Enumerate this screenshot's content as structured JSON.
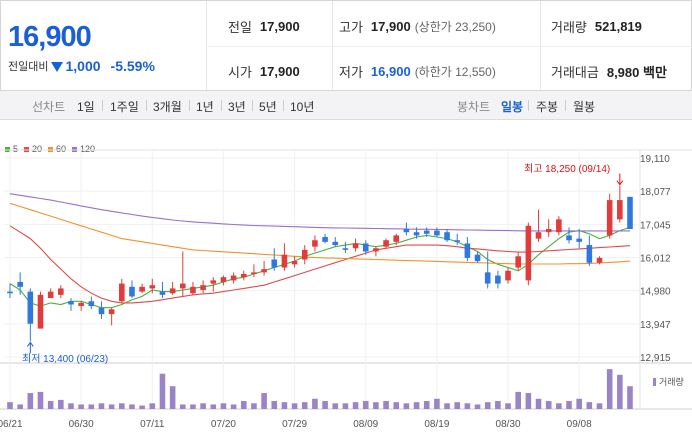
{
  "quote": {
    "price": "16,900",
    "change_label": "전일대비",
    "change_amount": "1,000",
    "change_rate": "-5.59%",
    "prev_close_label": "전일",
    "prev_close": "17,900",
    "high_label": "고가",
    "high": "17,900",
    "upper_limit": "(상한가 23,250)",
    "volume_label": "거래량",
    "volume": "521,819",
    "open_label": "시가",
    "open": "17,900",
    "low_label": "저가",
    "low": "16,900",
    "lower_limit": "(하한가 12,550)",
    "amount_label": "거래대금",
    "amount": "8,980 백만"
  },
  "toolbar": {
    "line_chart_label": "선차트",
    "line_periods": [
      "1일",
      "1주일",
      "3개월",
      "1년",
      "3년",
      "5년",
      "10년"
    ],
    "candle_chart_label": "봉차트",
    "candle_periods": [
      "일봉",
      "주봉",
      "월봉"
    ],
    "active_candle_period": "일봉"
  },
  "legend": [
    {
      "label": "5",
      "color": "#4caf3c"
    },
    {
      "label": "20",
      "color": "#e04b4b"
    },
    {
      "label": "60",
      "color": "#f0922e"
    },
    {
      "label": "120",
      "color": "#9b6ed0"
    }
  ],
  "annotations": {
    "high": "최고 18,250 (09/14)",
    "low": "최저 13,400 (06/23)"
  },
  "volume_label": "거래량",
  "chart_data": {
    "type": "candlestick",
    "y_ticks": [
      "19,110",
      "18,077",
      "17,045",
      "16,012",
      "14,980",
      "13,947",
      "12,915"
    ],
    "y_tick_values": [
      19110,
      18077,
      17045,
      16012,
      14980,
      13947,
      12915
    ],
    "ylim": [
      12915,
      19110
    ],
    "x_ticks": [
      "06/21",
      "06/30",
      "07/11",
      "07/20",
      "07/29",
      "08/09",
      "08/19",
      "08/30",
      "09/08"
    ],
    "x_tick_index": [
      0,
      7,
      14,
      21,
      28,
      35,
      42,
      49,
      56
    ],
    "colors": {
      "up": "#e03c3c",
      "down": "#2f78e0",
      "volume": "#9b83c7"
    },
    "candles": [
      {
        "o": 14950,
        "h": 15200,
        "l": 14750,
        "c": 14900
      },
      {
        "o": 15250,
        "h": 15550,
        "l": 14850,
        "c": 15100
      },
      {
        "o": 14950,
        "h": 15050,
        "l": 13400,
        "c": 13950
      },
      {
        "o": 13800,
        "h": 14950,
        "l": 13800,
        "c": 14850
      },
      {
        "o": 14750,
        "h": 15050,
        "l": 14750,
        "c": 14950
      },
      {
        "o": 14850,
        "h": 15150,
        "l": 14750,
        "c": 15050
      },
      {
        "o": 14650,
        "h": 14750,
        "l": 14350,
        "c": 14550
      },
      {
        "o": 14500,
        "h": 14650,
        "l": 14350,
        "c": 14600
      },
      {
        "o": 14650,
        "h": 14800,
        "l": 14400,
        "c": 14500
      },
      {
        "o": 14450,
        "h": 14650,
        "l": 14100,
        "c": 14250
      },
      {
        "o": 14250,
        "h": 14450,
        "l": 13900,
        "c": 14400
      },
      {
        "o": 14650,
        "h": 15350,
        "l": 14600,
        "c": 15200
      },
      {
        "o": 15100,
        "h": 15300,
        "l": 14750,
        "c": 14800
      },
      {
        "o": 14950,
        "h": 15200,
        "l": 14900,
        "c": 15100
      },
      {
        "o": 15050,
        "h": 15350,
        "l": 14900,
        "c": 15150
      },
      {
        "o": 14950,
        "h": 15250,
        "l": 14750,
        "c": 14850
      },
      {
        "o": 14900,
        "h": 15250,
        "l": 14850,
        "c": 15050
      },
      {
        "o": 15050,
        "h": 16200,
        "l": 14800,
        "c": 15200
      },
      {
        "o": 14900,
        "h": 15250,
        "l": 14850,
        "c": 15100
      },
      {
        "o": 15000,
        "h": 15300,
        "l": 14900,
        "c": 15150
      },
      {
        "o": 15200,
        "h": 15400,
        "l": 14950,
        "c": 15300
      },
      {
        "o": 15250,
        "h": 15450,
        "l": 15150,
        "c": 15400
      },
      {
        "o": 15300,
        "h": 15550,
        "l": 15200,
        "c": 15450
      },
      {
        "o": 15400,
        "h": 15600,
        "l": 15300,
        "c": 15500
      },
      {
        "o": 15500,
        "h": 15800,
        "l": 15400,
        "c": 15550
      },
      {
        "o": 15550,
        "h": 15900,
        "l": 15450,
        "c": 15650
      },
      {
        "o": 15950,
        "h": 16300,
        "l": 15600,
        "c": 15700
      },
      {
        "o": 15700,
        "h": 16450,
        "l": 15600,
        "c": 16100
      },
      {
        "o": 15800,
        "h": 16050,
        "l": 15700,
        "c": 15900
      },
      {
        "o": 15950,
        "h": 16400,
        "l": 15800,
        "c": 16250
      },
      {
        "o": 16350,
        "h": 16700,
        "l": 16200,
        "c": 16550
      },
      {
        "o": 16650,
        "h": 16750,
        "l": 16450,
        "c": 16500
      },
      {
        "o": 16500,
        "h": 16650,
        "l": 16350,
        "c": 16400
      },
      {
        "o": 16300,
        "h": 16500,
        "l": 16150,
        "c": 16250
      },
      {
        "o": 16300,
        "h": 16600,
        "l": 16200,
        "c": 16450
      },
      {
        "o": 16450,
        "h": 16550,
        "l": 16100,
        "c": 16200
      },
      {
        "o": 16200,
        "h": 16350,
        "l": 16050,
        "c": 16300
      },
      {
        "o": 16350,
        "h": 16600,
        "l": 16300,
        "c": 16550
      },
      {
        "o": 16500,
        "h": 16750,
        "l": 16400,
        "c": 16700
      },
      {
        "o": 16900,
        "h": 17100,
        "l": 16700,
        "c": 16800
      },
      {
        "o": 16800,
        "h": 16950,
        "l": 16600,
        "c": 16700
      },
      {
        "o": 16850,
        "h": 16950,
        "l": 16650,
        "c": 16750
      },
      {
        "o": 16850,
        "h": 16950,
        "l": 16650,
        "c": 16700
      },
      {
        "o": 16800,
        "h": 16900,
        "l": 16500,
        "c": 16550
      },
      {
        "o": 16550,
        "h": 16750,
        "l": 16400,
        "c": 16500
      },
      {
        "o": 16450,
        "h": 16650,
        "l": 15900,
        "c": 16000
      },
      {
        "o": 16100,
        "h": 16200,
        "l": 15850,
        "c": 15900
      },
      {
        "o": 15550,
        "h": 16200,
        "l": 15050,
        "c": 15200
      },
      {
        "o": 15450,
        "h": 15600,
        "l": 15050,
        "c": 15200
      },
      {
        "o": 15300,
        "h": 15700,
        "l": 15200,
        "c": 15600
      },
      {
        "o": 15700,
        "h": 16200,
        "l": 15600,
        "c": 16050
      },
      {
        "o": 15300,
        "h": 17100,
        "l": 15150,
        "c": 17000
      },
      {
        "o": 16600,
        "h": 17500,
        "l": 16500,
        "c": 16800
      },
      {
        "o": 16800,
        "h": 17200,
        "l": 16650,
        "c": 16900
      },
      {
        "o": 16800,
        "h": 17300,
        "l": 16700,
        "c": 17200
      },
      {
        "o": 16700,
        "h": 16950,
        "l": 16450,
        "c": 16550
      },
      {
        "o": 16600,
        "h": 16900,
        "l": 16300,
        "c": 16500
      },
      {
        "o": 16400,
        "h": 16700,
        "l": 15750,
        "c": 15850
      },
      {
        "o": 15850,
        "h": 16050,
        "l": 15800,
        "c": 16000
      },
      {
        "o": 16700,
        "h": 18000,
        "l": 16600,
        "c": 17800
      },
      {
        "o": 17200,
        "h": 18250,
        "l": 17100,
        "c": 17800
      },
      {
        "o": 17900,
        "h": 17900,
        "l": 16900,
        "c": 16900
      }
    ],
    "volumes": [
      12,
      8,
      28,
      30,
      14,
      16,
      10,
      8,
      8,
      10,
      8,
      10,
      8,
      6,
      10,
      62,
      40,
      8,
      8,
      10,
      8,
      10,
      8,
      14,
      10,
      28,
      14,
      12,
      10,
      12,
      18,
      14,
      10,
      10,
      12,
      14,
      12,
      14,
      12,
      10,
      12,
      14,
      18,
      10,
      12,
      10,
      8,
      12,
      14,
      10,
      30,
      28,
      18,
      14,
      10,
      14,
      18,
      12,
      10,
      70,
      60,
      40
    ],
    "vol_ylim": [
      0,
      72
    ],
    "ma": [
      {
        "name": "5",
        "color": "#4caf3c",
        "values": [
          15200,
          15000,
          14600,
          14500,
          14600,
          14550,
          14650,
          14650,
          14550,
          14450,
          14450,
          14550,
          14700,
          14800,
          15000,
          14950,
          14950,
          15000,
          15050,
          15100,
          15150,
          15250,
          15350,
          15400,
          15500,
          15600,
          15700,
          15800,
          15900,
          16050,
          16150,
          16250,
          16350,
          16400,
          16450,
          16400,
          16350,
          16400,
          16450,
          16550,
          16650,
          16700,
          16650,
          16600,
          16500,
          16350,
          16200,
          15950,
          15800,
          15700,
          15600,
          15800,
          16100,
          16350,
          16600,
          16800,
          16850,
          16750,
          16600,
          16700,
          16850,
          16950
        ]
      },
      {
        "name": "20",
        "color": "#e04b4b",
        "values": [
          17000,
          16800,
          16600,
          16300,
          15950,
          15650,
          15350,
          15100,
          14900,
          14750,
          14650,
          14600,
          14600,
          14620,
          14650,
          14700,
          14750,
          14800,
          14850,
          14880,
          14900,
          14950,
          15000,
          15050,
          15100,
          15150,
          15250,
          15350,
          15450,
          15550,
          15650,
          15750,
          15850,
          15950,
          16050,
          16150,
          16250,
          16300,
          16350,
          16400,
          16400,
          16400,
          16400,
          16380,
          16350,
          16300,
          16280,
          16250,
          16220,
          16200,
          16180,
          16180,
          16200,
          16220,
          16240,
          16260,
          16280,
          16300,
          16320,
          16340,
          16360,
          16380
        ]
      },
      {
        "name": "60",
        "color": "#f0922e",
        "values": [
          17700,
          17600,
          17500,
          17400,
          17300,
          17200,
          17100,
          17000,
          16900,
          16800,
          16700,
          16600,
          16550,
          16500,
          16450,
          16400,
          16350,
          16300,
          16250,
          16230,
          16210,
          16190,
          16170,
          16150,
          16130,
          16110,
          16090,
          16070,
          16050,
          16030,
          16010,
          16000,
          15990,
          15980,
          15970,
          15960,
          15950,
          15940,
          15930,
          15920,
          15910,
          15900,
          15890,
          15880,
          15870,
          15860,
          15850,
          15840,
          15830,
          15820,
          15810,
          15810,
          15810,
          15810,
          15810,
          15820,
          15820,
          15830,
          15840,
          15860,
          15880,
          15900
        ]
      },
      {
        "name": "120",
        "color": "#9b6ed0",
        "values": [
          18000,
          17950,
          17900,
          17850,
          17800,
          17740,
          17680,
          17620,
          17560,
          17500,
          17450,
          17400,
          17350,
          17300,
          17260,
          17220,
          17180,
          17150,
          17120,
          17100,
          17080,
          17060,
          17040,
          17020,
          17010,
          17000,
          16990,
          16980,
          16970,
          16960,
          16950,
          16940,
          16935,
          16930,
          16925,
          16920,
          16915,
          16910,
          16905,
          16900,
          16895,
          16890,
          16885,
          16880,
          16875,
          16870,
          16865,
          16860,
          16855,
          16850,
          16845,
          16840,
          16840,
          16840,
          16840,
          16840,
          16840,
          16840,
          16840,
          16840,
          16840,
          16840
        ]
      }
    ]
  }
}
